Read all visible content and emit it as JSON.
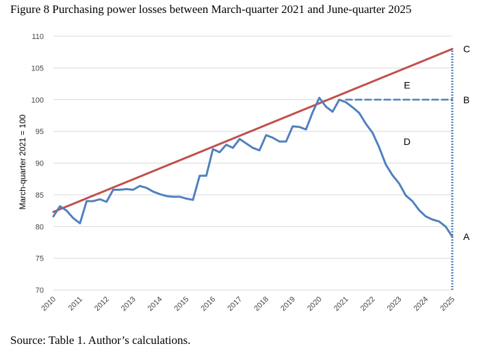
{
  "title": "Figure 8 Purchasing power losses between March-quarter 2021 and June-quarter 2025",
  "source": "Source: Table 1. Author’s calculations.",
  "chart_data": {
    "type": "line",
    "ylabel": "March-quarter 2021 = 100",
    "xlabel": "",
    "ylim": [
      70,
      110
    ],
    "yticks": [
      70,
      75,
      80,
      85,
      90,
      95,
      100,
      105,
      110
    ],
    "xlim": [
      2010,
      2025
    ],
    "xticks": [
      "2010",
      "2011",
      "2012",
      "2013",
      "2014",
      "2015",
      "2016",
      "2017",
      "2018",
      "2019",
      "2020",
      "2021",
      "2022",
      "2023",
      "2024",
      "2025"
    ],
    "grid": "horizontal",
    "colors": {
      "actual": "#4f81bd",
      "trend": "#c0504d",
      "grid": "#d9d9d9"
    },
    "series": [
      {
        "style": "solid",
        "x": [
          2010.0,
          2010.25,
          2010.5,
          2010.75,
          2011.0,
          2011.25,
          2011.5,
          2011.75,
          2012.0,
          2012.25,
          2012.5,
          2012.75,
          2013.0,
          2013.25,
          2013.5,
          2013.75,
          2014.0,
          2014.25,
          2014.5,
          2014.75,
          2015.0,
          2015.25,
          2015.5,
          2015.75,
          2016.0,
          2016.25,
          2016.5,
          2016.75,
          2017.0,
          2017.25,
          2017.5,
          2017.75,
          2018.0,
          2018.25,
          2018.5,
          2018.75,
          2019.0,
          2019.25,
          2019.5,
          2019.75,
          2020.0,
          2020.25,
          2020.5,
          2020.75,
          2021.0,
          2021.25,
          2021.5,
          2021.75,
          2022.0,
          2022.25,
          2022.5,
          2022.75,
          2023.0,
          2023.25,
          2023.5,
          2023.75,
          2024.0,
          2024.25,
          2024.5,
          2024.75,
          2025.0
        ],
        "values": [
          81.6,
          83.2,
          82.5,
          81.3,
          80.5,
          84.0,
          84.0,
          84.3,
          83.9,
          85.8,
          85.8,
          85.9,
          85.8,
          86.4,
          86.1,
          85.5,
          85.1,
          84.8,
          84.7,
          84.7,
          84.4,
          84.2,
          88.0,
          88.0,
          92.2,
          91.7,
          92.9,
          92.4,
          93.8,
          93.1,
          92.4,
          92.0,
          94.4,
          94.0,
          93.4,
          93.4,
          95.8,
          95.7,
          95.3,
          98.0,
          100.3,
          98.9,
          98.1,
          100.0,
          99.6,
          98.8,
          97.9,
          96.2,
          94.8,
          92.5,
          89.8,
          88.1,
          86.8,
          84.9,
          84.0,
          82.6,
          81.6,
          81.1,
          80.8,
          80.0,
          78.4
        ]
      },
      {
        "style": "solid",
        "x": [
          2010.0,
          2025.0
        ],
        "values": [
          82.3,
          108.0
        ]
      },
      {
        "style": "dashed",
        "x": [
          2021.0,
          2025.0
        ],
        "values": [
          100.0,
          100.0
        ]
      },
      {
        "style": "dotted",
        "x": [
          2025.0,
          2025.0
        ],
        "values": [
          70.0,
          108.0
        ]
      }
    ],
    "annotations": [
      {
        "text": "C",
        "x": 2025.0,
        "y": 108.0
      },
      {
        "text": "B",
        "x": 2025.0,
        "y": 100.0
      },
      {
        "text": "A",
        "x": 2025.0,
        "y": 78.4
      },
      {
        "text": "E",
        "x": 2023.3,
        "y": 102.3
      },
      {
        "text": "D",
        "x": 2023.3,
        "y": 93.4
      }
    ]
  }
}
